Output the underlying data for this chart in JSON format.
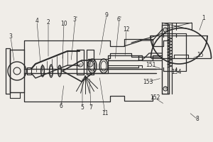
{
  "bg_color": "#f0ede8",
  "line_color": "#2a2a2a",
  "figsize": [
    3.0,
    2.0
  ],
  "dpi": 100,
  "labels": {
    "1": [
      284,
      22,
      278,
      60
    ],
    "2": [
      66,
      32,
      72,
      68
    ],
    "3": [
      15,
      68,
      22,
      82
    ],
    "4": [
      50,
      28,
      60,
      62
    ],
    "5": [
      116,
      155,
      118,
      148
    ],
    "6": [
      88,
      152,
      94,
      143
    ],
    "7": [
      127,
      155,
      126,
      148
    ],
    "8": [
      278,
      175,
      266,
      168
    ],
    "9": [
      148,
      20,
      148,
      68
    ],
    "10": [
      88,
      32,
      90,
      62
    ],
    "3p": [
      106,
      26,
      104,
      63
    ],
    "6p": [
      166,
      26,
      163,
      63
    ],
    "11": [
      148,
      162,
      144,
      152
    ],
    "12": [
      178,
      40,
      176,
      68
    ],
    "15": [
      280,
      118,
      272,
      118
    ],
    "151": [
      213,
      98,
      226,
      105
    ],
    "152": [
      220,
      143,
      232,
      143
    ],
    "153": [
      209,
      120,
      226,
      120
    ],
    "154": [
      248,
      108,
      254,
      112
    ]
  }
}
